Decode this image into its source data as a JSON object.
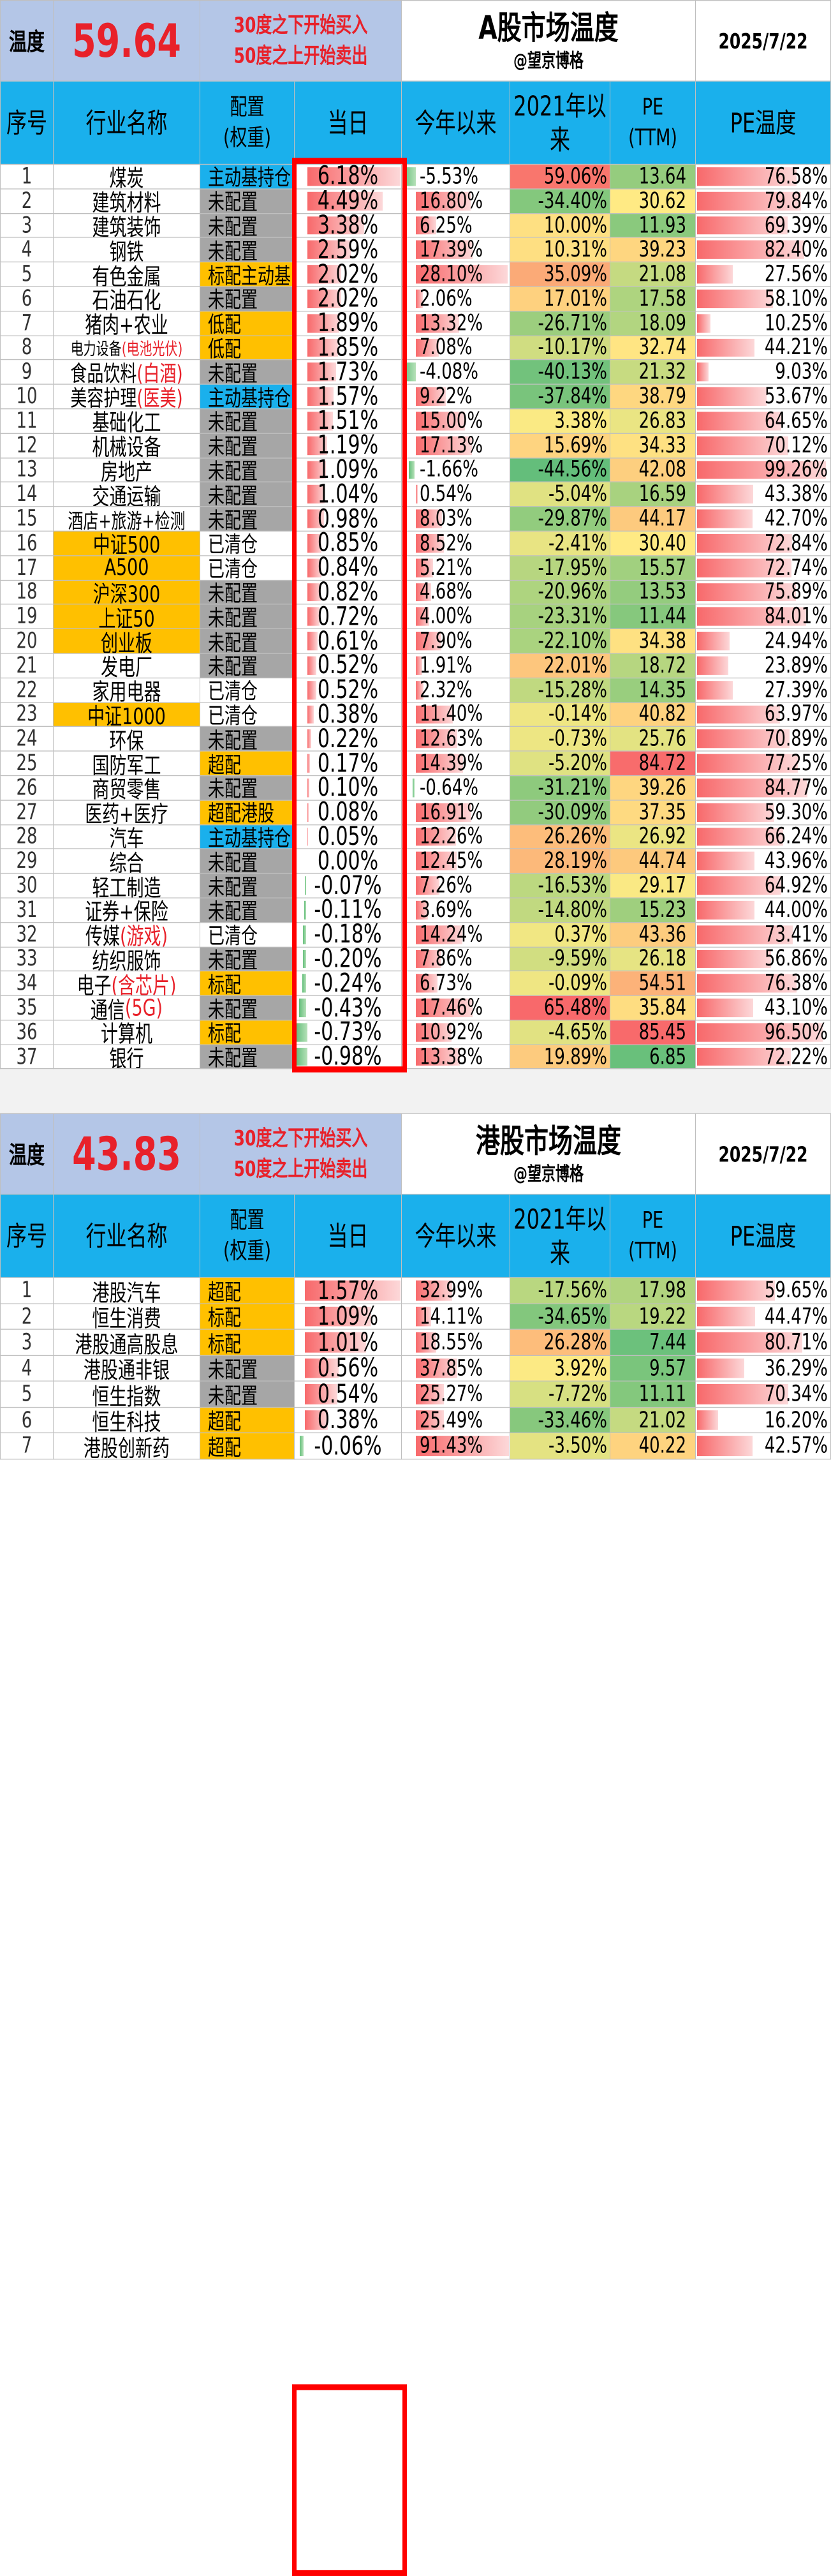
{
  "ashare": {
    "temp_label": "温度",
    "temp_value": "59.64",
    "rule_line1": "30度之下开始买入",
    "rule_line2": "50度之上开始卖出",
    "title": "A股市场温度",
    "author": "@望京博格",
    "date": "2025/7/22",
    "headers": [
      "序号",
      "行业名称",
      "配置",
      "(权重)",
      "当日",
      "今年以来",
      "2021年以来",
      "PE",
      "(TTM)",
      "PE温度"
    ],
    "rows": [
      {
        "idx": "1",
        "name": "煤炭",
        "name_suffix": "",
        "alloc": "主动基持仓",
        "alloc_style": "blue",
        "day": "6.18%",
        "day_v": 6.18,
        "ytd": "-5.53%",
        "ytd_v": -5.53,
        "y2021": "59.06%",
        "y2021_v": 59.06,
        "pe": "13.64",
        "pe_v": 13.64,
        "pet": "76.58%",
        "pet_v": 76.58
      },
      {
        "idx": "2",
        "name": "建筑材料",
        "name_suffix": "",
        "alloc": "未配置",
        "alloc_style": "none",
        "day": "4.49%",
        "day_v": 4.49,
        "ytd": "16.80%",
        "ytd_v": 16.8,
        "y2021": "-34.40%",
        "y2021_v": -34.4,
        "pe": "30.62",
        "pe_v": 30.62,
        "pet": "79.84%",
        "pet_v": 79.84
      },
      {
        "idx": "3",
        "name": "建筑装饰",
        "name_suffix": "",
        "alloc": "未配置",
        "alloc_style": "none",
        "day": "3.38%",
        "day_v": 3.38,
        "ytd": "6.25%",
        "ytd_v": 6.25,
        "y2021": "10.00%",
        "y2021_v": 10.0,
        "pe": "11.93",
        "pe_v": 11.93,
        "pet": "69.39%",
        "pet_v": 69.39
      },
      {
        "idx": "4",
        "name": "钢铁",
        "name_suffix": "",
        "alloc": "未配置",
        "alloc_style": "none",
        "day": "2.59%",
        "day_v": 2.59,
        "ytd": "17.39%",
        "ytd_v": 17.39,
        "y2021": "10.31%",
        "y2021_v": 10.31,
        "pe": "39.23",
        "pe_v": 39.23,
        "pet": "82.40%",
        "pet_v": 82.4
      },
      {
        "idx": "5",
        "name": "有色金属",
        "name_suffix": "",
        "alloc": "标配主动基",
        "alloc_style": "gold",
        "day": "2.02%",
        "day_v": 2.02,
        "ytd": "28.10%",
        "ytd_v": 28.1,
        "y2021": "35.09%",
        "y2021_v": 35.09,
        "pe": "21.08",
        "pe_v": 21.08,
        "pet": "27.56%",
        "pet_v": 27.56
      },
      {
        "idx": "6",
        "name": "石油石化",
        "name_suffix": "",
        "alloc": "未配置",
        "alloc_style": "none",
        "day": "2.02%",
        "day_v": 2.02,
        "ytd": "2.06%",
        "ytd_v": 2.06,
        "y2021": "17.01%",
        "y2021_v": 17.01,
        "pe": "17.58",
        "pe_v": 17.58,
        "pet": "58.10%",
        "pet_v": 58.1
      },
      {
        "idx": "7",
        "name": "猪肉+农业",
        "name_suffix": "",
        "alloc": "低配",
        "alloc_style": "gold",
        "day": "1.89%",
        "day_v": 1.89,
        "ytd": "13.32%",
        "ytd_v": 13.32,
        "y2021": "-26.71%",
        "y2021_v": -26.71,
        "pe": "18.09",
        "pe_v": 18.09,
        "pet": "10.25%",
        "pet_v": 10.25
      },
      {
        "idx": "8",
        "name": "电力设备",
        "name_suffix": "(电池光伏)",
        "alloc": "低配",
        "alloc_style": "gold",
        "day": "1.85%",
        "day_v": 1.85,
        "ytd": "7.08%",
        "ytd_v": 7.08,
        "y2021": "-10.17%",
        "y2021_v": -10.17,
        "pe": "32.74",
        "pe_v": 32.74,
        "pet": "44.21%",
        "pet_v": 44.21
      },
      {
        "idx": "9",
        "name": "食品饮料",
        "name_suffix": "(白酒)",
        "alloc": "未配置",
        "alloc_style": "none",
        "day": "1.73%",
        "day_v": 1.73,
        "ytd": "-4.08%",
        "ytd_v": -4.08,
        "y2021": "-40.13%",
        "y2021_v": -40.13,
        "pe": "21.32",
        "pe_v": 21.32,
        "pet": "9.03%",
        "pet_v": 9.03
      },
      {
        "idx": "10",
        "name": "美容护理",
        "name_suffix": "(医美)",
        "alloc": "主动基持仓",
        "alloc_style": "blue",
        "day": "1.57%",
        "day_v": 1.57,
        "ytd": "9.22%",
        "ytd_v": 9.22,
        "y2021": "-37.84%",
        "y2021_v": -37.84,
        "pe": "38.79",
        "pe_v": 38.79,
        "pet": "53.67%",
        "pet_v": 53.67
      },
      {
        "idx": "11",
        "name": "基础化工",
        "name_suffix": "",
        "alloc": "未配置",
        "alloc_style": "none",
        "day": "1.51%",
        "day_v": 1.51,
        "ytd": "15.00%",
        "ytd_v": 15.0,
        "y2021": "3.38%",
        "y2021_v": 3.38,
        "pe": "26.83",
        "pe_v": 26.83,
        "pet": "64.65%",
        "pet_v": 64.65
      },
      {
        "idx": "12",
        "name": "机械设备",
        "name_suffix": "",
        "alloc": "未配置",
        "alloc_style": "none",
        "day": "1.19%",
        "day_v": 1.19,
        "ytd": "17.13%",
        "ytd_v": 17.13,
        "y2021": "15.69%",
        "y2021_v": 15.69,
        "pe": "34.33",
        "pe_v": 34.33,
        "pet": "70.12%",
        "pet_v": 70.12
      },
      {
        "idx": "13",
        "name": "房地产",
        "name_suffix": "",
        "alloc": "未配置",
        "alloc_style": "none",
        "day": "1.09%",
        "day_v": 1.09,
        "ytd": "-1.66%",
        "ytd_v": -1.66,
        "y2021": "-44.56%",
        "y2021_v": -44.56,
        "pe": "42.08",
        "pe_v": 42.08,
        "pet": "99.26%",
        "pet_v": 99.26
      },
      {
        "idx": "14",
        "name": "交通运输",
        "name_suffix": "",
        "alloc": "未配置",
        "alloc_style": "none",
        "day": "1.04%",
        "day_v": 1.04,
        "ytd": "0.54%",
        "ytd_v": 0.54,
        "y2021": "-5.04%",
        "y2021_v": -5.04,
        "pe": "16.59",
        "pe_v": 16.59,
        "pet": "43.38%",
        "pet_v": 43.38
      },
      {
        "idx": "15",
        "name": "酒店+旅游+检测",
        "name_suffix": "",
        "alloc": "未配置",
        "alloc_style": "none",
        "day": "0.98%",
        "day_v": 0.98,
        "ytd": "8.03%",
        "ytd_v": 8.03,
        "y2021": "-29.87%",
        "y2021_v": -29.87,
        "pe": "44.17",
        "pe_v": 44.17,
        "pet": "42.70%",
        "pet_v": 42.7
      },
      {
        "idx": "16",
        "name": "中证500",
        "name_suffix": "",
        "name_hl": true,
        "alloc": "已清仓",
        "alloc_style": "clear",
        "day": "0.85%",
        "day_v": 0.85,
        "ytd": "8.52%",
        "ytd_v": 8.52,
        "y2021": "-2.41%",
        "y2021_v": -2.41,
        "pe": "30.40",
        "pe_v": 30.4,
        "pet": "72.84%",
        "pet_v": 72.84
      },
      {
        "idx": "17",
        "name": "A500",
        "name_suffix": "",
        "name_hl": true,
        "alloc": "已清仓",
        "alloc_style": "clear",
        "day": "0.84%",
        "day_v": 0.84,
        "ytd": "5.21%",
        "ytd_v": 5.21,
        "y2021": "-17.95%",
        "y2021_v": -17.95,
        "pe": "15.57",
        "pe_v": 15.57,
        "pet": "72.74%",
        "pet_v": 72.74
      },
      {
        "idx": "18",
        "name": "沪深300",
        "name_suffix": "",
        "name_hl": true,
        "alloc": "未配置",
        "alloc_style": "none",
        "day": "0.82%",
        "day_v": 0.82,
        "ytd": "4.68%",
        "ytd_v": 4.68,
        "y2021": "-20.96%",
        "y2021_v": -20.96,
        "pe": "13.53",
        "pe_v": 13.53,
        "pet": "75.89%",
        "pet_v": 75.89
      },
      {
        "idx": "19",
        "name": "上证50",
        "name_suffix": "",
        "name_hl": true,
        "alloc": "未配置",
        "alloc_style": "none",
        "day": "0.72%",
        "day_v": 0.72,
        "ytd": "4.00%",
        "ytd_v": 4.0,
        "y2021": "-23.31%",
        "y2021_v": -23.31,
        "pe": "11.44",
        "pe_v": 11.44,
        "pet": "84.01%",
        "pet_v": 84.01
      },
      {
        "idx": "20",
        "name": "创业板",
        "name_suffix": "",
        "name_hl": true,
        "alloc": "未配置",
        "alloc_style": "none",
        "day": "0.61%",
        "day_v": 0.61,
        "ytd": "7.90%",
        "ytd_v": 7.9,
        "y2021": "-22.10%",
        "y2021_v": -22.1,
        "pe": "34.38",
        "pe_v": 34.38,
        "pet": "24.94%",
        "pet_v": 24.94
      },
      {
        "idx": "21",
        "name": "发电厂",
        "name_suffix": "",
        "alloc": "未配置",
        "alloc_style": "none",
        "day": "0.52%",
        "day_v": 0.52,
        "ytd": "1.91%",
        "ytd_v": 1.91,
        "y2021": "22.01%",
        "y2021_v": 22.01,
        "pe": "18.72",
        "pe_v": 18.72,
        "pet": "23.89%",
        "pet_v": 23.89
      },
      {
        "idx": "22",
        "name": "家用电器",
        "name_suffix": "",
        "alloc": "已清仓",
        "alloc_style": "clear",
        "day": "0.52%",
        "day_v": 0.52,
        "ytd": "2.32%",
        "ytd_v": 2.32,
        "y2021": "-15.28%",
        "y2021_v": -15.28,
        "pe": "14.35",
        "pe_v": 14.35,
        "pet": "27.39%",
        "pet_v": 27.39
      },
      {
        "idx": "23",
        "name": "中证1000",
        "name_suffix": "",
        "name_hl": true,
        "alloc": "已清仓",
        "alloc_style": "clear",
        "day": "0.38%",
        "day_v": 0.38,
        "ytd": "11.40%",
        "ytd_v": 11.4,
        "y2021": "-0.14%",
        "y2021_v": -0.14,
        "pe": "40.82",
        "pe_v": 40.82,
        "pet": "63.97%",
        "pet_v": 63.97
      },
      {
        "idx": "24",
        "name": "环保",
        "name_suffix": "",
        "alloc": "未配置",
        "alloc_style": "none",
        "day": "0.22%",
        "day_v": 0.22,
        "ytd": "12.63%",
        "ytd_v": 12.63,
        "y2021": "-0.73%",
        "y2021_v": -0.73,
        "pe": "25.76",
        "pe_v": 25.76,
        "pet": "70.89%",
        "pet_v": 70.89
      },
      {
        "idx": "25",
        "name": "国防军工",
        "name_suffix": "",
        "alloc": "超配",
        "alloc_style": "gold",
        "day": "0.17%",
        "day_v": 0.17,
        "ytd": "14.39%",
        "ytd_v": 14.39,
        "y2021": "-5.20%",
        "y2021_v": -5.2,
        "pe": "84.72",
        "pe_v": 84.72,
        "pet": "77.25%",
        "pet_v": 77.25
      },
      {
        "idx": "26",
        "name": "商贸零售",
        "name_suffix": "",
        "alloc": "未配置",
        "alloc_style": "none",
        "day": "0.10%",
        "day_v": 0.1,
        "ytd": "-0.64%",
        "ytd_v": -0.64,
        "y2021": "-31.21%",
        "y2021_v": -31.21,
        "pe": "39.26",
        "pe_v": 39.26,
        "pet": "84.77%",
        "pet_v": 84.77
      },
      {
        "idx": "27",
        "name": "医药+医疗",
        "name_suffix": "",
        "alloc": "超配港股",
        "alloc_style": "gold",
        "day": "0.08%",
        "day_v": 0.08,
        "ytd": "16.91%",
        "ytd_v": 16.91,
        "y2021": "-30.09%",
        "y2021_v": -30.09,
        "pe": "37.35",
        "pe_v": 37.35,
        "pet": "59.30%",
        "pet_v": 59.3
      },
      {
        "idx": "28",
        "name": "汽车",
        "name_suffix": "",
        "alloc": "主动基持仓",
        "alloc_style": "blue",
        "day": "0.05%",
        "day_v": 0.05,
        "ytd": "12.26%",
        "ytd_v": 12.26,
        "y2021": "26.26%",
        "y2021_v": 26.26,
        "pe": "26.92",
        "pe_v": 26.92,
        "pet": "66.24%",
        "pet_v": 66.24
      },
      {
        "idx": "29",
        "name": "综合",
        "name_suffix": "",
        "alloc": "未配置",
        "alloc_style": "none",
        "day": "0.00%",
        "day_v": 0.0,
        "ytd": "12.45%",
        "ytd_v": 12.45,
        "y2021": "28.19%",
        "y2021_v": 28.19,
        "pe": "44.74",
        "pe_v": 44.74,
        "pet": "43.96%",
        "pet_v": 43.96
      },
      {
        "idx": "30",
        "name": "轻工制造",
        "name_suffix": "",
        "alloc": "未配置",
        "alloc_style": "none",
        "day": "-0.07%",
        "day_v": -0.07,
        "ytd": "7.26%",
        "ytd_v": 7.26,
        "y2021": "-16.53%",
        "y2021_v": -16.53,
        "pe": "29.17",
        "pe_v": 29.17,
        "pet": "64.92%",
        "pet_v": 64.92
      },
      {
        "idx": "31",
        "name": "证券+保险",
        "name_suffix": "",
        "alloc": "未配置",
        "alloc_style": "none",
        "day": "-0.11%",
        "day_v": -0.11,
        "ytd": "3.69%",
        "ytd_v": 3.69,
        "y2021": "-14.80%",
        "y2021_v": -14.8,
        "pe": "15.23",
        "pe_v": 15.23,
        "pet": "44.00%",
        "pet_v": 44.0
      },
      {
        "idx": "32",
        "name": "传媒",
        "name_suffix": "(游戏)",
        "alloc": "已清仓",
        "alloc_style": "clear",
        "day": "-0.18%",
        "day_v": -0.18,
        "ytd": "14.24%",
        "ytd_v": 14.24,
        "y2021": "0.37%",
        "y2021_v": 0.37,
        "pe": "43.36",
        "pe_v": 43.36,
        "pet": "73.41%",
        "pet_v": 73.41
      },
      {
        "idx": "33",
        "name": "纺织服饰",
        "name_suffix": "",
        "alloc": "未配置",
        "alloc_style": "none",
        "day": "-0.20%",
        "day_v": -0.2,
        "ytd": "7.86%",
        "ytd_v": 7.86,
        "y2021": "-9.59%",
        "y2021_v": -9.59,
        "pe": "26.18",
        "pe_v": 26.18,
        "pet": "56.86%",
        "pet_v": 56.86
      },
      {
        "idx": "34",
        "name": "电子",
        "name_suffix": "(含芯片)",
        "alloc": "标配",
        "alloc_style": "gold",
        "day": "-0.24%",
        "day_v": -0.24,
        "ytd": "6.73%",
        "ytd_v": 6.73,
        "y2021": "-0.09%",
        "y2021_v": -0.09,
        "pe": "54.51",
        "pe_v": 54.51,
        "pet": "76.38%",
        "pet_v": 76.38
      },
      {
        "idx": "35",
        "name": "通信",
        "name_suffix": "(5G)",
        "alloc": "未配置",
        "alloc_style": "none",
        "day": "-0.43%",
        "day_v": -0.43,
        "ytd": "17.46%",
        "ytd_v": 17.46,
        "y2021": "65.48%",
        "y2021_v": 65.48,
        "pe": "35.84",
        "pe_v": 35.84,
        "pet": "43.10%",
        "pet_v": 43.1
      },
      {
        "idx": "36",
        "name": "计算机",
        "name_suffix": "",
        "alloc": "标配",
        "alloc_style": "gold",
        "day": "-0.73%",
        "day_v": -0.73,
        "ytd": "10.92%",
        "ytd_v": 10.92,
        "y2021": "-4.65%",
        "y2021_v": -4.65,
        "pe": "85.45",
        "pe_v": 85.45,
        "pet": "96.50%",
        "pet_v": 96.5
      },
      {
        "idx": "37",
        "name": "银行",
        "name_suffix": "",
        "alloc": "未配置",
        "alloc_style": "none",
        "day": "-0.98%",
        "day_v": -0.98,
        "ytd": "13.38%",
        "ytd_v": 13.38,
        "y2021": "19.89%",
        "y2021_v": 19.89,
        "pe": "6.85",
        "pe_v": 6.85,
        "pet": "72.22%",
        "pet_v": 72.22
      }
    ]
  },
  "hkshare": {
    "temp_label": "温度",
    "temp_value": "43.83",
    "rule_line1": "30度之下开始买入",
    "rule_line2": "50度之上开始卖出",
    "title": "港股市场温度",
    "author": "@望京博格",
    "date": "2025/7/22",
    "headers": [
      "序号",
      "行业名称",
      "配置",
      "(权重)",
      "当日",
      "今年以来",
      "2021年以来",
      "PE",
      "(TTM)",
      "PE温度"
    ],
    "rows": [
      {
        "idx": "1",
        "name": "港股汽车",
        "name_suffix": "",
        "alloc": "超配",
        "alloc_style": "gold",
        "day": "1.57%",
        "day_v": 1.57,
        "ytd": "32.99%",
        "ytd_v": 32.99,
        "y2021": "-17.56%",
        "y2021_v": -17.56,
        "pe": "17.98",
        "pe_v": 17.98,
        "pet": "59.65%",
        "pet_v": 59.65
      },
      {
        "idx": "2",
        "name": "恒生消费",
        "name_suffix": "",
        "alloc": "标配",
        "alloc_style": "gold",
        "day": "1.09%",
        "day_v": 1.09,
        "ytd": "14.11%",
        "ytd_v": 14.11,
        "y2021": "-34.65%",
        "y2021_v": -34.65,
        "pe": "19.22",
        "pe_v": 19.22,
        "pet": "44.47%",
        "pet_v": 44.47
      },
      {
        "idx": "3",
        "name": "港股通高股息",
        "name_suffix": "",
        "alloc": "标配",
        "alloc_style": "gold",
        "day": "1.01%",
        "day_v": 1.01,
        "ytd": "18.55%",
        "ytd_v": 18.55,
        "y2021": "26.28%",
        "y2021_v": 26.28,
        "pe": "7.44",
        "pe_v": 7.44,
        "pet": "80.71%",
        "pet_v": 80.71
      },
      {
        "idx": "4",
        "name": "港股通非银",
        "name_suffix": "",
        "alloc": "未配置",
        "alloc_style": "none",
        "day": "0.56%",
        "day_v": 0.56,
        "ytd": "37.85%",
        "ytd_v": 37.85,
        "y2021": "3.92%",
        "y2021_v": 3.92,
        "pe": "9.57",
        "pe_v": 9.57,
        "pet": "36.29%",
        "pet_v": 36.29
      },
      {
        "idx": "5",
        "name": "恒生指数",
        "name_suffix": "",
        "alloc": "未配置",
        "alloc_style": "none",
        "day": "0.54%",
        "day_v": 0.54,
        "ytd": "25.27%",
        "ytd_v": 25.27,
        "y2021": "-7.72%",
        "y2021_v": -7.72,
        "pe": "11.11",
        "pe_v": 11.11,
        "pet": "70.34%",
        "pet_v": 70.34
      },
      {
        "idx": "6",
        "name": "恒生科技",
        "name_suffix": "",
        "alloc": "超配",
        "alloc_style": "gold",
        "day": "0.38%",
        "day_v": 0.38,
        "ytd": "25.49%",
        "ytd_v": 25.49,
        "y2021": "-33.46%",
        "y2021_v": -33.46,
        "pe": "21.02",
        "pe_v": 21.02,
        "pet": "16.20%",
        "pet_v": 16.2
      },
      {
        "idx": "7",
        "name": "港股创新药",
        "name_suffix": "",
        "alloc": "超配",
        "alloc_style": "gold",
        "day": "-0.06%",
        "day_v": -0.06,
        "ytd": "91.43%",
        "ytd_v": 91.43,
        "y2021": "-3.50%",
        "y2021_v": -3.5,
        "pe": "40.22",
        "pe_v": 40.22,
        "pet": "42.57%",
        "pet_v": 42.57
      }
    ]
  },
  "colors": {
    "header_blue": "#1ab0ec",
    "temp_bg": "#b4c6e7",
    "temp_red": "#e8212a",
    "alloc_none": "#a6a6a6",
    "alloc_gold": "#ffc000",
    "highlight_box": "#ff0000"
  }
}
